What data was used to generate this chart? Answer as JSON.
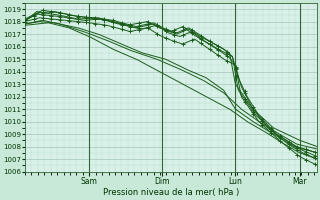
{
  "bg_color": "#c8e8d8",
  "plot_bg_color": "#d8f0e8",
  "grid_color_major": "#99bbaa",
  "grid_color_minor": "#bbddcc",
  "ylim": [
    1006,
    1019.5
  ],
  "yticks": [
    1006,
    1007,
    1008,
    1009,
    1010,
    1011,
    1012,
    1013,
    1014,
    1015,
    1016,
    1017,
    1018,
    1019
  ],
  "xlabel": "Pression niveau de la mer( hPa )",
  "day_labels": [
    "Sam",
    "Dim",
    "Lun",
    "Mar"
  ],
  "day_positions": [
    0.22,
    0.47,
    0.72,
    0.94
  ],
  "line_color": "#1a5c1a",
  "marker_color": "#1a5c1a",
  "vline_color": "#336633",
  "spine_color": "#336633",
  "tick_color": "#003300",
  "label_color": "#003300"
}
